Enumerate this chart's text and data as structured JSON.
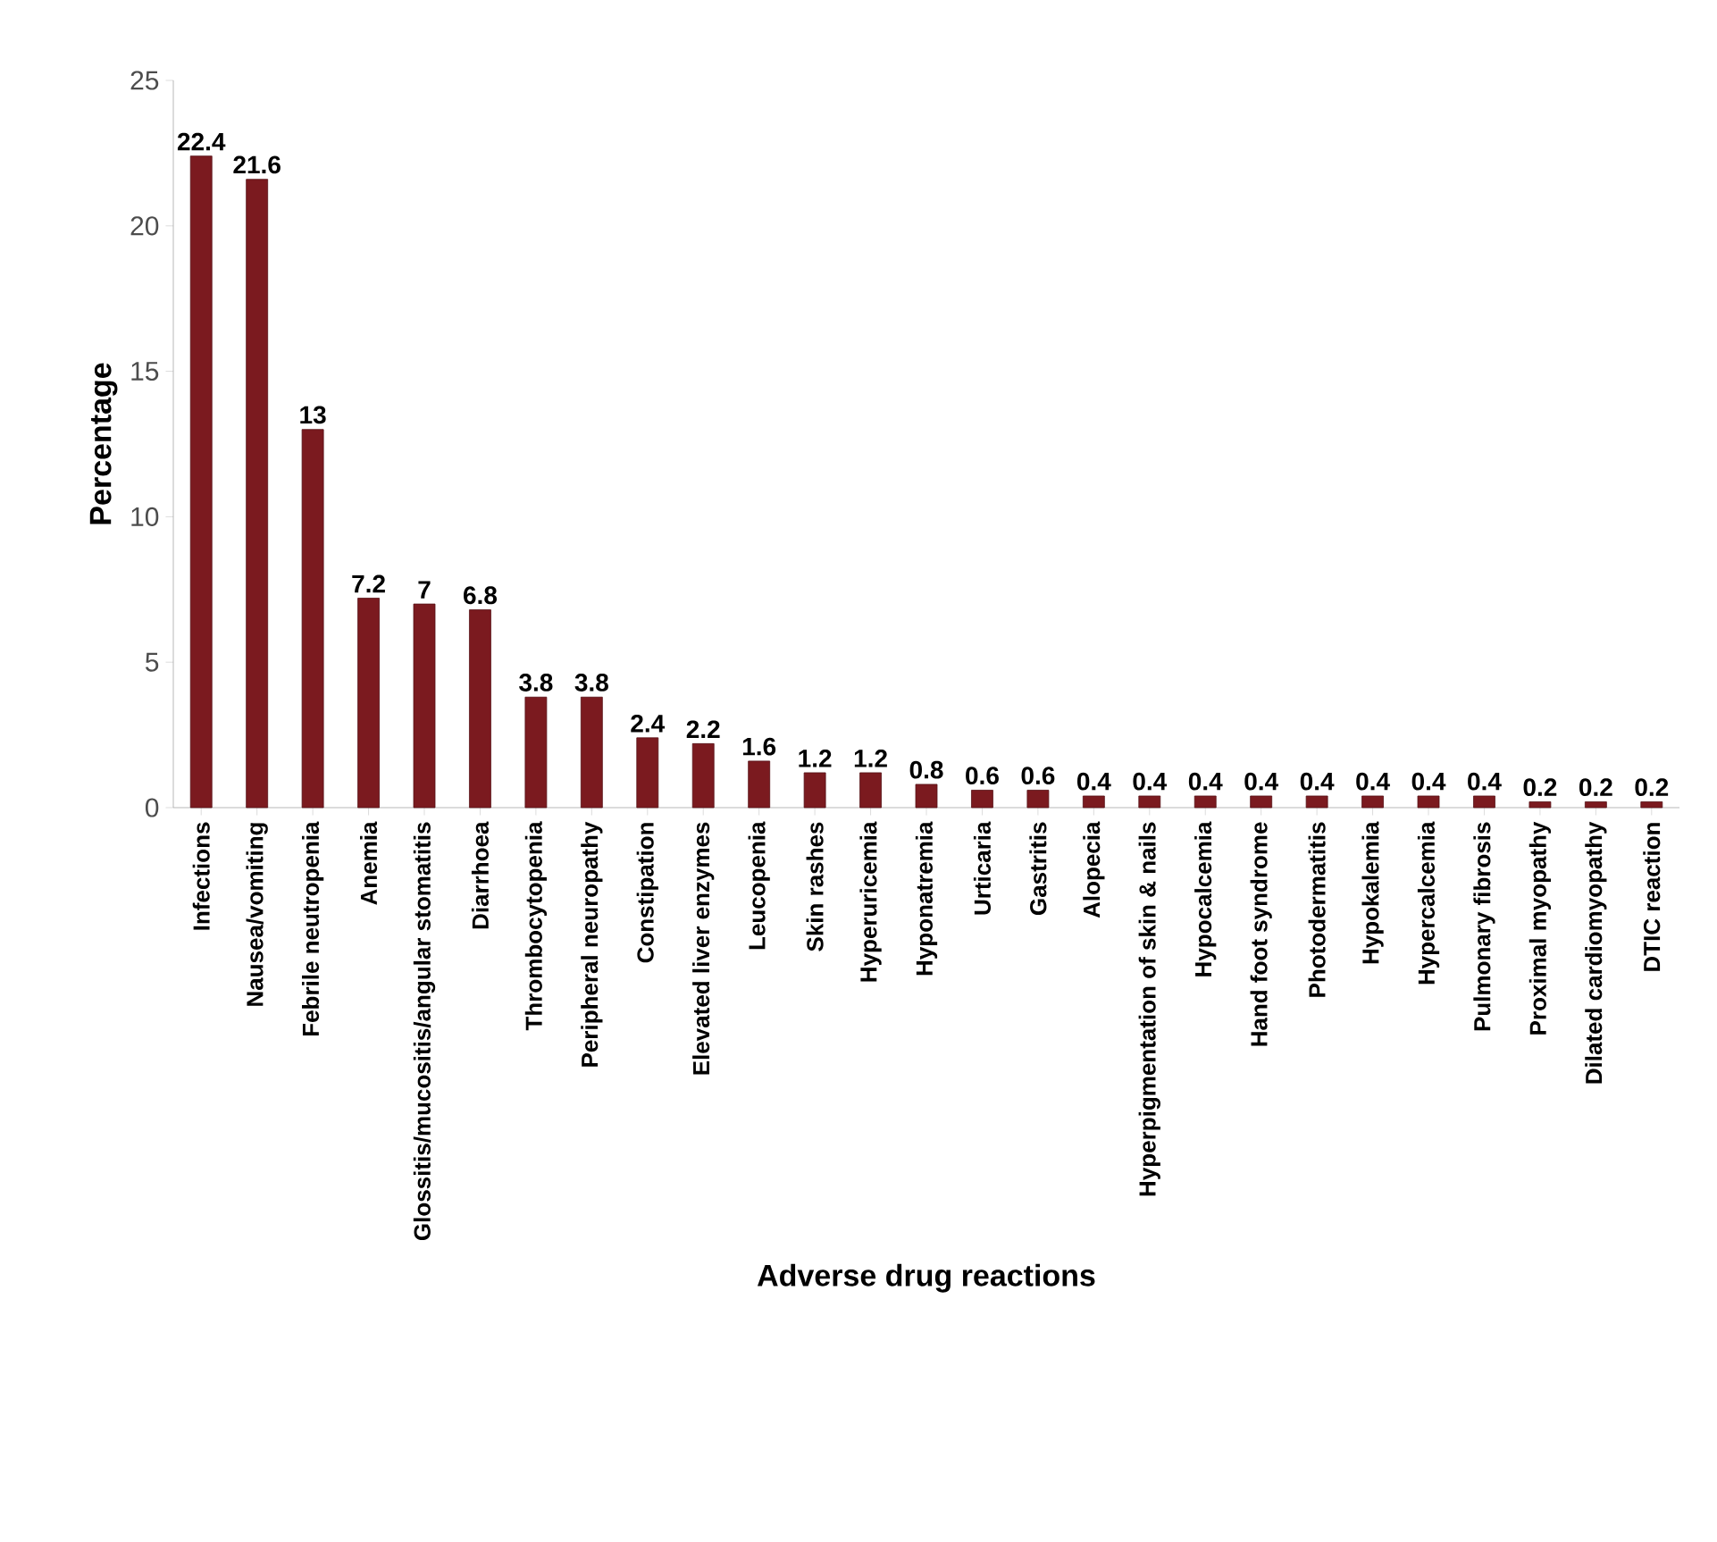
{
  "chart_data": {
    "type": "bar",
    "xlabel": "Adverse drug reactions",
    "ylabel": "Percentage",
    "categories": [
      "Infections",
      "Nausea/vomiting",
      "Febrile neutropenia",
      "Anemia",
      "Glossitis/mucositis/angular stomatitis",
      "Diarrhoea",
      "Thrombocytopenia",
      "Peripheral neuropathy",
      "Constipation",
      "Elevated liver enzymes",
      "Leucopenia",
      "Skin rashes",
      "Hyperuricemia",
      "Hyponatremia",
      "Urticaria",
      "Gastritis",
      "Alopecia",
      "Hyperpigmentation of skin & nails",
      "Hypocalcemia",
      "Hand foot syndrome",
      "Photodermatitis",
      "Hypokalemia",
      "Hypercalcemia",
      "Pulmonary fibrosis",
      "Proximal myopathy",
      "Dilated cardiomyopathy",
      "DTIC reaction"
    ],
    "values": [
      22.4,
      21.6,
      13,
      7.2,
      7,
      6.8,
      3.8,
      3.8,
      2.4,
      2.2,
      1.6,
      1.2,
      1.2,
      0.8,
      0.6,
      0.6,
      0.4,
      0.4,
      0.4,
      0.4,
      0.4,
      0.4,
      0.4,
      0.4,
      0.2,
      0.2,
      0.2
    ],
    "color": "#7b1a1f",
    "ylim": [
      0,
      25
    ],
    "yticks": [
      0,
      5,
      10,
      15,
      20,
      25
    ],
    "data_labels": true
  }
}
